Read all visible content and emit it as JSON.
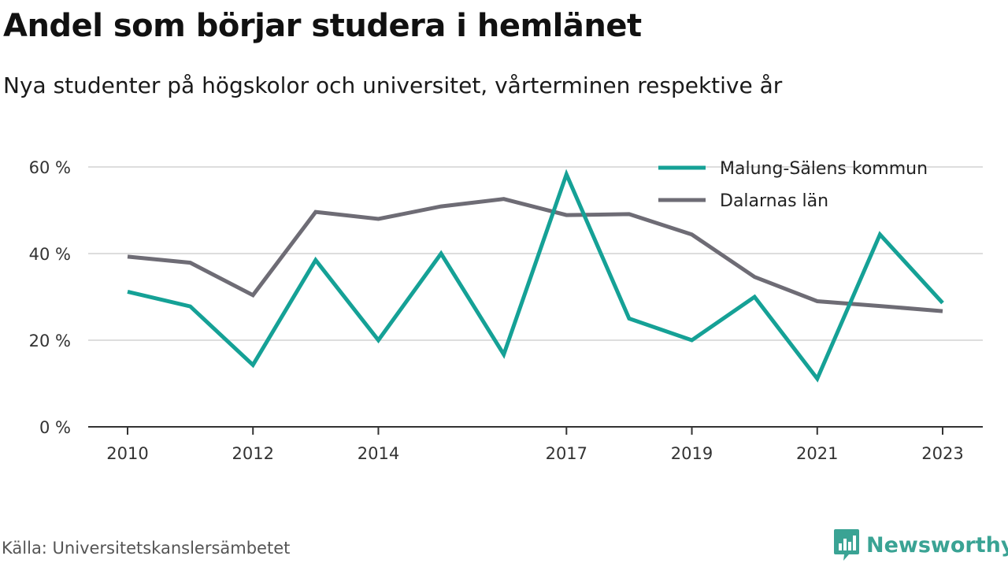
{
  "title": "Andel som börjar studera i hemlänet",
  "subtitle": "Nya studenter på högskolor och universitet, vårterminen respektive år",
  "source": "Källa: Universitetskanslersämbetet",
  "brand": {
    "name": "Newsworthy",
    "icon": "newsworthy-logo-icon"
  },
  "colors": {
    "malung": "#15a196",
    "dalarna": "#6e6c75",
    "grid": "#dddddd",
    "axis": "#333333"
  },
  "chart_data": {
    "type": "line",
    "x": [
      2010,
      2011,
      2012,
      2013,
      2014,
      2015,
      2016,
      2017,
      2018,
      2019,
      2020,
      2021,
      2022,
      2023
    ],
    "x_tick_labels": [
      "2010",
      "2012",
      "2014",
      "2017",
      "2019",
      "2021",
      "2023"
    ],
    "y_tick_labels": [
      "0 %",
      "20 %",
      "40 %",
      "60 %"
    ],
    "ylim": [
      0,
      60
    ],
    "grid": true,
    "legend_position": "top-right",
    "series": [
      {
        "name": "Malung-Sälens kommun",
        "color": "#15a196",
        "values": [
          31.2,
          27.8,
          14.3,
          38.5,
          20.0,
          40.0,
          16.7,
          58.3,
          25.0,
          20.0,
          30.0,
          11.1,
          44.4,
          28.6
        ]
      },
      {
        "name": "Dalarnas län",
        "color": "#6e6c75",
        "values": [
          39.3,
          37.9,
          30.4,
          49.6,
          48.0,
          50.9,
          52.6,
          48.9,
          49.1,
          44.4,
          34.6,
          29.0,
          27.9,
          26.7
        ]
      }
    ]
  }
}
